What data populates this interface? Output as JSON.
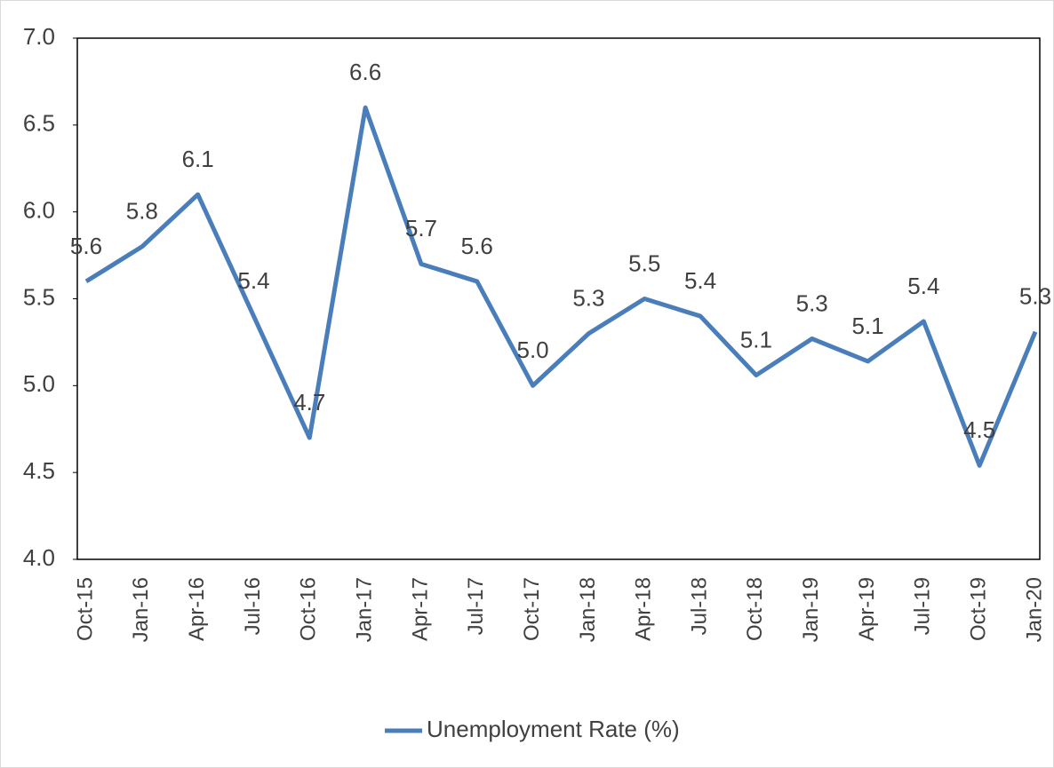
{
  "chart_data": {
    "type": "line",
    "categories": [
      "Oct-15",
      "Jan-16",
      "Apr-16",
      "Jul-16",
      "Oct-16",
      "Jan-17",
      "Apr-17",
      "Jul-17",
      "Oct-17",
      "Jan-18",
      "Apr-18",
      "Jul-18",
      "Oct-18",
      "Jan-19",
      "Apr-19",
      "Jul-19",
      "Oct-19",
      "Jan-20"
    ],
    "series": [
      {
        "name": "Unemployment Rate (%)",
        "color": "#4a7ebb",
        "values": [
          5.6,
          5.8,
          6.1,
          5.4,
          4.7,
          6.6,
          5.7,
          5.6,
          5.0,
          5.3,
          5.5,
          5.4,
          5.06,
          5.27,
          5.14,
          5.37,
          4.54,
          5.31
        ],
        "value_labels": [
          "5.6",
          "5.8",
          "6.1",
          "5.4",
          "4.7",
          "6.6",
          "5.7",
          "5.6",
          "5.0",
          "5.3",
          "5.5",
          "5.4",
          "5.1",
          "5.3",
          "5.1",
          "5.4",
          "4.5",
          "5.3"
        ]
      }
    ],
    "ylim": [
      4,
      7
    ],
    "yticks": [
      {
        "value": 4,
        "label": "4.0"
      },
      4.5,
      {
        "value": 5,
        "label": "5.0"
      },
      5.5,
      {
        "value": 6,
        "label": "6.0"
      },
      6.5,
      {
        "value": 7,
        "label": "7.0"
      }
    ],
    "grid": false,
    "legend": "bottom"
  }
}
